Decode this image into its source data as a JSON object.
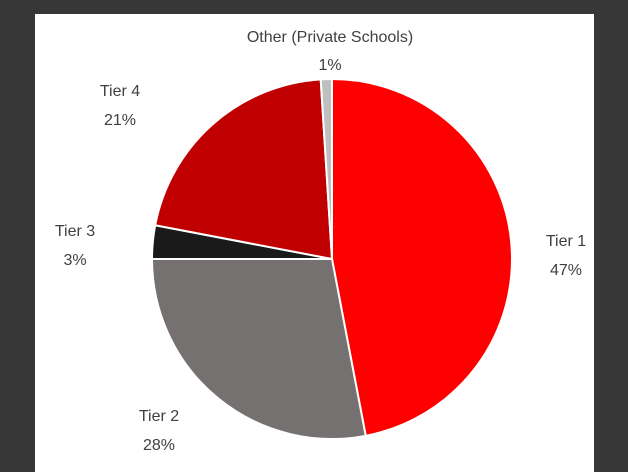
{
  "chart_data": {
    "type": "pie",
    "start_angle_deg": 0,
    "direction": "clockwise",
    "slice_border_color": "#ffffff",
    "slices": [
      {
        "label": "Tier 1",
        "value": 47,
        "value_label": "47%",
        "color": "#ff0000"
      },
      {
        "label": "Tier 2",
        "value": 28,
        "value_label": "28%",
        "color": "#767171"
      },
      {
        "label": "Tier 3",
        "value": 3,
        "value_label": "3%",
        "color": "#1a1a1a"
      },
      {
        "label": "Tier 4",
        "value": 21,
        "value_label": "21%",
        "color": "#c00000"
      },
      {
        "label": "Other (Private Schools)",
        "value": 1,
        "value_label": "1%",
        "color": "#bfbfbf"
      }
    ]
  }
}
